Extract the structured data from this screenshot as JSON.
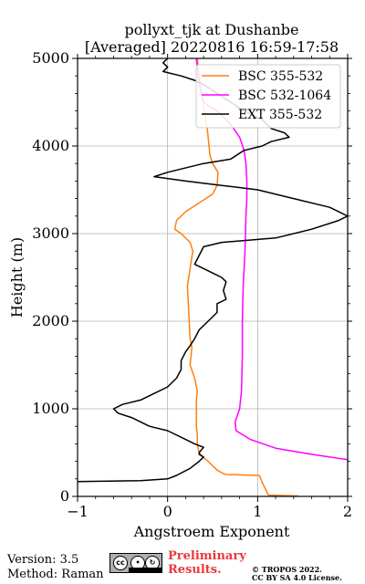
{
  "chart_data": {
    "type": "line",
    "title": "pollyxt_tjk at Dushanbe",
    "subtitle": "[Averaged] 20220816 16:59-17:58",
    "xlabel": "Angstroem Exponent",
    "ylabel": "Height (m)",
    "xlim": [
      -1,
      2
    ],
    "ylim": [
      0,
      5000
    ],
    "xticks": [
      -1,
      0,
      1,
      2
    ],
    "yticks": [
      0,
      1000,
      2000,
      3000,
      4000,
      5000
    ],
    "grid": true,
    "legend_position": "top-right",
    "series": [
      {
        "name": "BSC 355-532",
        "color": "#ff7f0e",
        "points": [
          [
            1.45,
            5
          ],
          [
            1.12,
            15
          ],
          [
            1.05,
            160
          ],
          [
            1.02,
            240
          ],
          [
            0.65,
            250
          ],
          [
            0.62,
            260
          ],
          [
            0.55,
            300
          ],
          [
            0.45,
            400
          ],
          [
            0.38,
            460
          ],
          [
            0.35,
            500
          ],
          [
            0.33,
            600
          ],
          [
            0.33,
            700
          ],
          [
            0.32,
            800
          ],
          [
            0.32,
            900
          ],
          [
            0.32,
            1000
          ],
          [
            0.32,
            1100
          ],
          [
            0.33,
            1200
          ],
          [
            0.3,
            1350
          ],
          [
            0.25,
            1500
          ],
          [
            0.26,
            1600
          ],
          [
            0.27,
            1700
          ],
          [
            0.25,
            1800
          ],
          [
            0.24,
            2000
          ],
          [
            0.23,
            2200
          ],
          [
            0.22,
            2400
          ],
          [
            0.25,
            2600
          ],
          [
            0.28,
            2800
          ],
          [
            0.25,
            2900
          ],
          [
            0.15,
            3000
          ],
          [
            0.08,
            3050
          ],
          [
            0.1,
            3150
          ],
          [
            0.2,
            3250
          ],
          [
            0.35,
            3350
          ],
          [
            0.5,
            3450
          ],
          [
            0.55,
            3550
          ],
          [
            0.56,
            3700
          ],
          [
            0.5,
            3800
          ],
          [
            0.47,
            3900
          ],
          [
            0.46,
            4000
          ],
          [
            0.45,
            4100
          ],
          [
            0.44,
            4200
          ],
          [
            0.42,
            4300
          ],
          [
            0.4,
            4450
          ],
          [
            0.38,
            4600
          ],
          [
            0.35,
            4800
          ],
          [
            0.33,
            5000
          ]
        ]
      },
      {
        "name": "BSC 532-1064",
        "color": "#ff00ff",
        "points": [
          [
            2.0,
            420
          ],
          [
            1.6,
            480
          ],
          [
            1.2,
            550
          ],
          [
            0.92,
            650
          ],
          [
            0.76,
            750
          ],
          [
            0.75,
            850
          ],
          [
            0.8,
            1000
          ],
          [
            0.82,
            1200
          ],
          [
            0.83,
            1600
          ],
          [
            0.83,
            2000
          ],
          [
            0.84,
            2400
          ],
          [
            0.86,
            2800
          ],
          [
            0.87,
            3200
          ],
          [
            0.88,
            3400
          ],
          [
            0.88,
            3600
          ],
          [
            0.87,
            3800
          ],
          [
            0.85,
            3950
          ],
          [
            0.8,
            4100
          ],
          [
            0.7,
            4250
          ],
          [
            0.55,
            4400
          ],
          [
            0.4,
            4500
          ],
          [
            0.35,
            4700
          ],
          [
            0.33,
            4900
          ],
          [
            0.32,
            5000
          ]
        ]
      },
      {
        "name": "EXT 355-532",
        "color": "#000000",
        "points": [
          [
            -1,
            170
          ],
          [
            -0.3,
            180
          ],
          [
            0.0,
            200
          ],
          [
            0.1,
            240
          ],
          [
            0.25,
            320
          ],
          [
            0.35,
            400
          ],
          [
            0.4,
            450
          ],
          [
            0.35,
            480
          ],
          [
            0.35,
            500
          ],
          [
            0.4,
            560
          ],
          [
            0.3,
            600
          ],
          [
            0.2,
            650
          ],
          [
            0.0,
            750
          ],
          [
            -0.2,
            800
          ],
          [
            -0.4,
            900
          ],
          [
            -0.55,
            950
          ],
          [
            -0.6,
            1000
          ],
          [
            -0.5,
            1050
          ],
          [
            -0.3,
            1100
          ],
          [
            -0.1,
            1200
          ],
          [
            0.0,
            1250
          ],
          [
            0.1,
            1350
          ],
          [
            0.15,
            1450
          ],
          [
            0.15,
            1550
          ],
          [
            0.2,
            1650
          ],
          [
            0.25,
            1720
          ],
          [
            0.3,
            1800
          ],
          [
            0.35,
            1900
          ],
          [
            0.45,
            2000
          ],
          [
            0.55,
            2100
          ],
          [
            0.55,
            2200
          ],
          [
            0.65,
            2250
          ],
          [
            0.62,
            2350
          ],
          [
            0.65,
            2450
          ],
          [
            0.6,
            2500
          ],
          [
            0.5,
            2550
          ],
          [
            0.3,
            2650
          ],
          [
            0.35,
            2750
          ],
          [
            0.4,
            2850
          ],
          [
            0.6,
            2900
          ],
          [
            1.2,
            2950
          ],
          [
            1.6,
            3050
          ],
          [
            1.9,
            3150
          ],
          [
            2.0,
            3200
          ],
          [
            1.8,
            3300
          ],
          [
            1.4,
            3400
          ],
          [
            1.0,
            3500
          ],
          [
            0.6,
            3550
          ],
          [
            0.2,
            3600
          ],
          [
            -0.15,
            3650
          ],
          [
            0.0,
            3700
          ],
          [
            0.4,
            3800
          ],
          [
            0.7,
            3850
          ],
          [
            0.85,
            3950
          ],
          [
            1.05,
            4000
          ],
          [
            1.15,
            4050
          ],
          [
            1.35,
            4100
          ],
          [
            1.3,
            4150
          ],
          [
            1.15,
            4200
          ],
          [
            1.05,
            4300
          ],
          [
            0.85,
            4400
          ],
          [
            0.7,
            4500
          ],
          [
            0.55,
            4600
          ],
          [
            0.4,
            4700
          ],
          [
            0.3,
            4750
          ],
          [
            0.15,
            4800
          ],
          [
            -0.05,
            4850
          ],
          [
            0.0,
            4900
          ],
          [
            -0.05,
            4950
          ],
          [
            0.0,
            5000
          ]
        ]
      }
    ]
  },
  "footer": {
    "version": "Version: 3.5",
    "method": "Method: Raman",
    "preliminary_line1": "Preliminary",
    "preliminary_line2": "Results.",
    "copyright_line1": "© TROPOS 2022.",
    "copyright_line2": "CC BY SA 4.0 License.",
    "license_badge": "CC BY SA"
  }
}
